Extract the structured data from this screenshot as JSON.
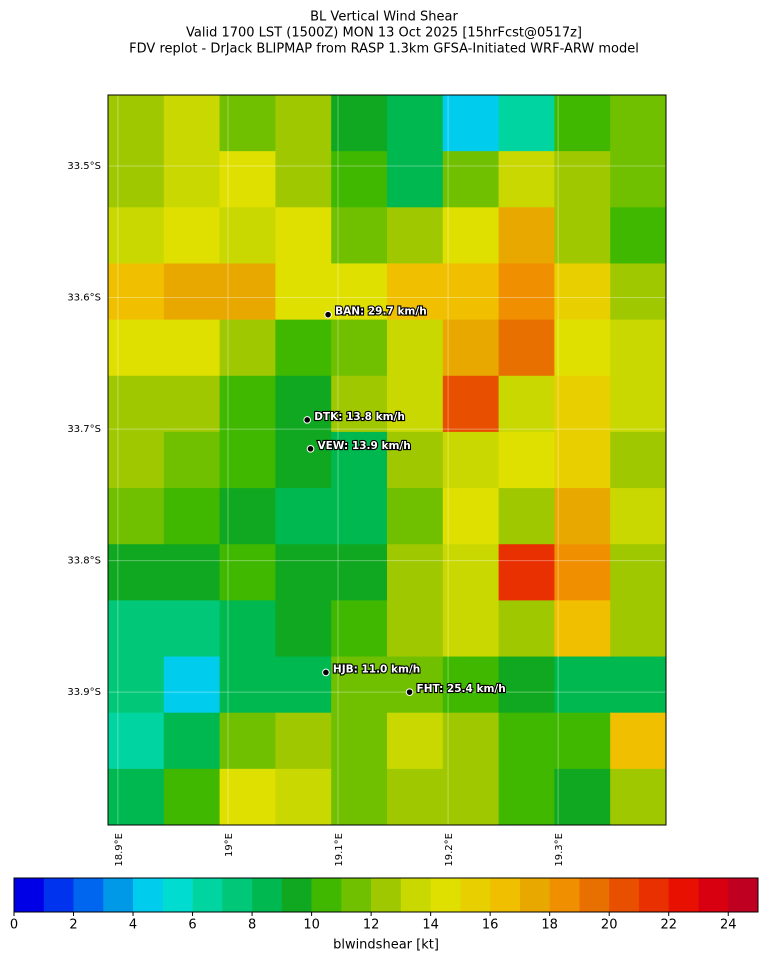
{
  "header": {
    "title_lines": [
      "BL Vertical Wind Shear",
      "Valid 1700 LST (1500Z) MON 13 Oct 2025 [15hrFcst@0517z]",
      "FDV replot - DrJack BLIPMAP from RASP 1.3km GFSA-Initiated WRF-ARW model"
    ]
  },
  "map": {
    "xlim": [
      18.891,
      19.398
    ],
    "ylim": [
      -34.001,
      -33.446
    ],
    "xticks": [
      {
        "value": 18.9,
        "label": "18.9°E"
      },
      {
        "value": 19.0,
        "label": "19°E"
      },
      {
        "value": 19.1,
        "label": "19.1°E"
      },
      {
        "value": 19.2,
        "label": "19.2°E"
      },
      {
        "value": 19.3,
        "label": "19.3°E"
      }
    ],
    "yticks": [
      {
        "value": -33.5,
        "label": "33.5°S"
      },
      {
        "value": -33.6,
        "label": "33.6°S"
      },
      {
        "value": -33.7,
        "label": "33.7°S"
      },
      {
        "value": -33.8,
        "label": "33.8°S"
      },
      {
        "value": -33.9,
        "label": "33.9°S"
      }
    ],
    "grid": true,
    "field": [
      [
        12,
        13,
        11,
        12,
        9,
        8,
        4,
        6,
        10,
        11
      ],
      [
        12,
        13,
        14,
        12,
        10,
        8,
        11,
        13,
        12,
        11
      ],
      [
        13,
        14,
        13,
        14,
        11,
        12,
        14,
        17,
        12,
        10
      ],
      [
        16,
        17,
        17,
        14,
        14,
        16,
        16,
        18,
        15,
        12
      ],
      [
        14,
        14,
        12,
        10,
        11,
        13,
        17,
        19,
        14,
        13
      ],
      [
        12,
        12,
        10,
        9,
        12,
        13,
        20,
        13,
        15,
        13
      ],
      [
        12,
        11,
        10,
        9,
        8,
        12,
        13,
        14,
        15,
        12
      ],
      [
        11,
        10,
        9,
        8,
        8,
        11,
        14,
        12,
        17,
        13
      ],
      [
        9,
        9,
        10,
        9,
        9,
        12,
        13,
        21,
        18,
        12
      ],
      [
        7,
        7,
        8,
        9,
        10,
        12,
        13,
        12,
        16,
        12
      ],
      [
        7,
        4,
        8,
        8,
        11,
        11,
        10,
        9,
        8,
        8
      ],
      [
        6,
        8,
        11,
        12,
        11,
        13,
        12,
        10,
        10,
        16
      ],
      [
        8,
        10,
        14,
        13,
        11,
        12,
        12,
        10,
        9,
        12
      ]
    ],
    "stations": [
      {
        "label": "BAN: 29.7 km/h",
        "lon": 19.091,
        "lat": -33.613
      },
      {
        "label": "DTK: 13.8 km/h",
        "lon": 19.072,
        "lat": -33.693
      },
      {
        "label": "VEW: 13.9 km/h",
        "lon": 19.075,
        "lat": -33.715
      },
      {
        "label": "HJB: 11.0 km/h",
        "lon": 19.089,
        "lat": -33.885
      },
      {
        "label": "FHT: 25.4 km/h",
        "lon": 19.165,
        "lat": -33.9
      }
    ]
  },
  "colorbar": {
    "label": "blwindshear [kt]",
    "clim": [
      0,
      25
    ],
    "ticks": [
      0,
      2,
      4,
      6,
      8,
      10,
      12,
      14,
      16,
      18,
      20,
      22,
      24
    ],
    "colors": [
      "#0000e6",
      "#0033ee",
      "#0066f0",
      "#0099e8",
      "#00ccee",
      "#00ddd0",
      "#00d4a0",
      "#00c878",
      "#00b850",
      "#10a820",
      "#40b800",
      "#70c000",
      "#a0c800",
      "#c8d800",
      "#e0e000",
      "#e8d000",
      "#f0c000",
      "#e8a800",
      "#f09000",
      "#e87000",
      "#e85000",
      "#e83000",
      "#e81000",
      "#d80010",
      "#c00020"
    ]
  }
}
